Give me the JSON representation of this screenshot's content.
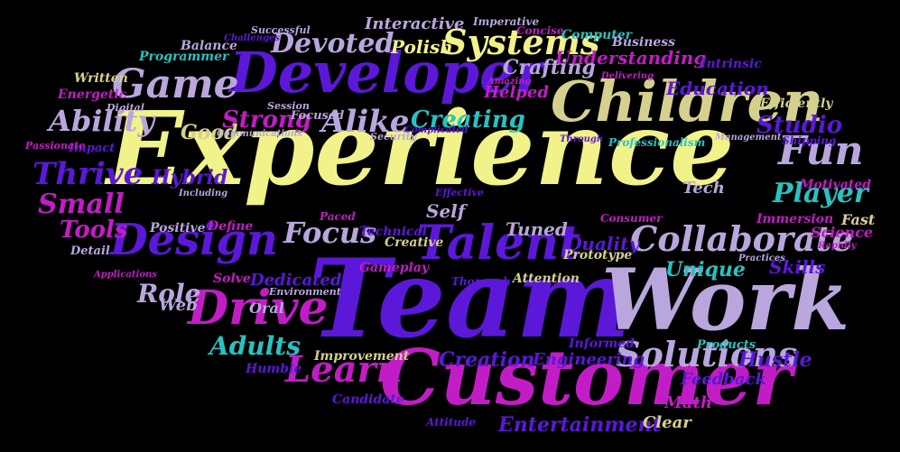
{
  "palette": {
    "yellow": "#f1f28a",
    "purple": "#5b18d8",
    "lavender": "#b9a6dd",
    "magenta": "#c21cc6",
    "teal": "#27c3c0",
    "olive": "#d6d08e",
    "background": "#000000"
  },
  "words": [
    {
      "text": "Experience",
      "color": "yellow"
    },
    {
      "text": "Team",
      "color": "purple"
    },
    {
      "text": "Work",
      "color": "lavender"
    },
    {
      "text": "Customer",
      "color": "magenta"
    },
    {
      "text": "Children",
      "color": "olive"
    },
    {
      "text": "Developer",
      "color": "purple"
    },
    {
      "text": "Collaborate",
      "color": "lavender"
    },
    {
      "text": "Talent",
      "color": "purple"
    },
    {
      "text": "Design",
      "color": "purple"
    },
    {
      "text": "Drive",
      "color": "magenta"
    },
    {
      "text": "Solutions",
      "color": "lavender"
    },
    {
      "text": "Systems",
      "color": "yellow"
    },
    {
      "text": "Game",
      "color": "lavender"
    },
    {
      "text": "Fun",
      "color": "lavender"
    },
    {
      "text": "Player",
      "color": "teal"
    },
    {
      "text": "Learn",
      "color": "magenta"
    },
    {
      "text": "Devoted",
      "color": "lavender"
    },
    {
      "text": "Ability",
      "color": "lavender"
    },
    {
      "text": "Thrive",
      "color": "purple"
    },
    {
      "text": "Strong",
      "color": "magenta"
    },
    {
      "text": "Alike",
      "color": "lavender"
    },
    {
      "text": "Creating",
      "color": "teal"
    },
    {
      "text": "Focus",
      "color": "lavender"
    },
    {
      "text": "Adults",
      "color": "teal"
    },
    {
      "text": "Small",
      "color": "magenta"
    },
    {
      "text": "Tools",
      "color": "magenta"
    },
    {
      "text": "Hybrid",
      "color": "purple"
    },
    {
      "text": "Studio",
      "color": "purple"
    },
    {
      "text": "Education",
      "color": "purple"
    },
    {
      "text": "Understanding",
      "color": "magenta"
    },
    {
      "text": "Crafting",
      "color": "lavender"
    },
    {
      "text": "Polish",
      "color": "yellow"
    },
    {
      "text": "Interactive",
      "color": "lavender"
    },
    {
      "text": "Role",
      "color": "lavender"
    },
    {
      "text": "Good",
      "color": "olive"
    },
    {
      "text": "Self",
      "color": "lavender"
    },
    {
      "text": "Tuned",
      "color": "lavender"
    },
    {
      "text": "Quality",
      "color": "purple"
    },
    {
      "text": "Unique",
      "color": "teal"
    },
    {
      "text": "Creation",
      "color": "purple"
    },
    {
      "text": "Entertainment",
      "color": "purple"
    },
    {
      "text": "Dedicated",
      "color": "purple"
    },
    {
      "text": "Oral",
      "color": "lavender"
    },
    {
      "text": "Web",
      "color": "lavender"
    },
    {
      "text": "Skills",
      "color": "purple"
    },
    {
      "text": "Science",
      "color": "magenta"
    },
    {
      "text": "Immersion",
      "color": "magenta"
    },
    {
      "text": "Fast",
      "color": "olive"
    },
    {
      "text": "Tech",
      "color": "lavender"
    },
    {
      "text": "Hustle",
      "color": "purple"
    },
    {
      "text": "Engineering",
      "color": "purple"
    },
    {
      "text": "Feedback",
      "color": "purple"
    },
    {
      "text": "Math",
      "color": "magenta"
    },
    {
      "text": "Clear",
      "color": "olive"
    },
    {
      "text": "Helped",
      "color": "magenta"
    },
    {
      "text": "Positive",
      "color": "lavender"
    },
    {
      "text": "Define",
      "color": "magenta"
    },
    {
      "text": "Solve",
      "color": "magenta"
    },
    {
      "text": "Gameplay",
      "color": "magenta"
    },
    {
      "text": "Attention",
      "color": "olive"
    },
    {
      "text": "Improvement",
      "color": "olive"
    },
    {
      "text": "Candidate",
      "color": "purple"
    },
    {
      "text": "Humble",
      "color": "purple"
    },
    {
      "text": "Programmer",
      "color": "teal"
    },
    {
      "text": "Written",
      "color": "olive"
    },
    {
      "text": "Energetic",
      "color": "magenta"
    },
    {
      "text": "Balance",
      "color": "lavender"
    },
    {
      "text": "Computer",
      "color": "teal"
    },
    {
      "text": "Business",
      "color": "lavender"
    },
    {
      "text": "Intrinsic",
      "color": "purple"
    },
    {
      "text": "Efficiently",
      "color": "olive"
    },
    {
      "text": "Motivated",
      "color": "magenta"
    },
    {
      "text": "Shipping",
      "color": "purple"
    },
    {
      "text": "Consumer",
      "color": "magenta"
    },
    {
      "text": "Technical",
      "color": "purple"
    },
    {
      "text": "Creative",
      "color": "olive"
    },
    {
      "text": "Prototype",
      "color": "olive"
    },
    {
      "text": "Informed",
      "color": "purple"
    },
    {
      "text": "Products",
      "color": "teal"
    },
    {
      "text": "Thorough",
      "color": "purple"
    },
    {
      "text": "Environment",
      "color": "lavender"
    },
    {
      "text": "Detail",
      "color": "lavender"
    },
    {
      "text": "Impact",
      "color": "purple"
    },
    {
      "text": "Passionate",
      "color": "magenta"
    },
    {
      "text": "Digital",
      "color": "lavender"
    },
    {
      "text": "Communications",
      "color": "lavender"
    },
    {
      "text": "Session",
      "color": "lavender"
    },
    {
      "text": "Focused",
      "color": "lavender"
    },
    {
      "text": "Security",
      "color": "lavender"
    },
    {
      "text": "Complicated",
      "color": "purple"
    },
    {
      "text": "Paced",
      "color": "magenta"
    },
    {
      "text": "Effective",
      "color": "purple"
    },
    {
      "text": "Including",
      "color": "lavender"
    },
    {
      "text": "Applications",
      "color": "magenta"
    },
    {
      "text": "Successful",
      "color": "lavender"
    },
    {
      "text": "Challenges",
      "color": "purple"
    },
    {
      "text": "Imperative",
      "color": "lavender"
    },
    {
      "text": "Concise",
      "color": "magenta"
    },
    {
      "text": "Amazing",
      "color": "magenta"
    },
    {
      "text": "Delivering",
      "color": "magenta"
    },
    {
      "text": "Professionalism",
      "color": "teal"
    },
    {
      "text": "Through",
      "color": "purple"
    },
    {
      "text": "Management",
      "color": "lavender"
    },
    {
      "text": "Rapidly",
      "color": "magenta"
    },
    {
      "text": "Practices",
      "color": "lavender"
    },
    {
      "text": "Attitude",
      "color": "purple"
    }
  ]
}
